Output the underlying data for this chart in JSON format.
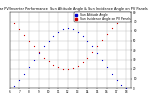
{
  "title": "Solar PV/Inverter Performance  Sun Altitude Angle & Sun Incidence Angle on PV Panels",
  "series": [
    {
      "label": "Sun Altitude Angle",
      "color": "#0000cc",
      "marker": "s",
      "markersize": 0.8,
      "x": [
        6.5,
        7.0,
        7.5,
        8.0,
        8.5,
        9.0,
        9.5,
        10.0,
        10.5,
        11.0,
        11.5,
        12.0,
        12.5,
        13.0,
        13.5,
        14.0,
        14.5,
        15.0,
        15.5,
        16.0,
        16.5,
        17.0,
        17.5,
        18.0
      ],
      "y": [
        2,
        8,
        15,
        22,
        30,
        37,
        44,
        50,
        55,
        59,
        62,
        63,
        62,
        59,
        55,
        50,
        44,
        37,
        30,
        22,
        15,
        8,
        3,
        0
      ]
    },
    {
      "label": "Sun Incidence Angle on PV Panels",
      "color": "#cc0000",
      "marker": "s",
      "markersize": 0.8,
      "x": [
        6.5,
        7.0,
        7.5,
        8.0,
        8.5,
        9.0,
        9.5,
        10.0,
        10.5,
        11.0,
        11.5,
        12.0,
        12.5,
        13.0,
        13.5,
        14.0,
        14.5,
        15.0,
        15.5,
        16.0,
        16.5,
        17.0,
        17.5,
        18.0
      ],
      "y": [
        68,
        62,
        56,
        50,
        44,
        38,
        32,
        28,
        24,
        22,
        20,
        20,
        21,
        23,
        27,
        32,
        38,
        44,
        51,
        57,
        63,
        68,
        72,
        75
      ]
    }
  ],
  "xlim": [
    6.0,
    18.5
  ],
  "ylim": [
    0,
    80
  ],
  "xticks": [
    6,
    7,
    8,
    9,
    10,
    11,
    12,
    13,
    14,
    15,
    16,
    17,
    18
  ],
  "yticks": [
    0,
    10,
    20,
    30,
    40,
    50,
    60,
    70,
    80
  ],
  "grid_color": "#bbbbbb",
  "background_color": "#ffffff",
  "title_fontsize": 2.5,
  "tick_fontsize": 2.0,
  "legend_fontsize": 2.2,
  "legend_loc": "upper right"
}
